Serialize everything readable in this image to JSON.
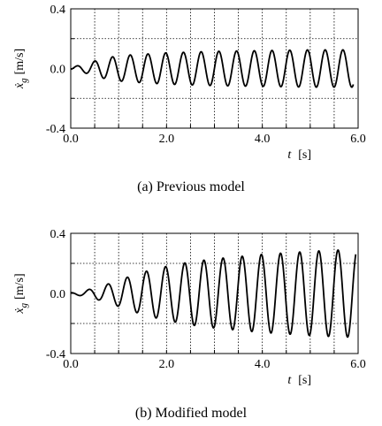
{
  "chart_data": [
    {
      "type": "line",
      "caption": "(a) Previous model",
      "xlabel": "t",
      "xlabel_unit": "[s]",
      "ylabel": "ẋ",
      "ylabel_sub": "g",
      "ylabel_unit": "[m/s]",
      "xlim": [
        0,
        6
      ],
      "ylim": [
        -0.4,
        0.4
      ],
      "xticks": [
        0,
        0.5,
        1,
        1.5,
        2,
        2.5,
        3,
        3.5,
        4,
        4.5,
        5,
        5.5,
        6
      ],
      "xticklabels": [
        {
          "x": 0,
          "label": "0.0"
        },
        {
          "x": 2,
          "label": "2.0"
        },
        {
          "x": 4,
          "label": "4.0"
        },
        {
          "x": 6,
          "label": "6.0"
        }
      ],
      "yticklabels": [
        {
          "y": 0.4,
          "label": "0.4"
        },
        {
          "y": 0,
          "label": "0.0"
        },
        {
          "y": -0.4,
          "label": "-0.4"
        }
      ],
      "hgrid": [
        0.2,
        -0.2
      ],
      "grid": "dotted",
      "series": [
        {
          "color": "#000000",
          "envelope": {
            "t": [
              0,
              0.3,
              0.6,
              0.9,
              1.2,
              2,
              3,
              4,
              5,
              5.9
            ],
            "amp": [
              0.008,
              0.03,
              0.06,
              0.08,
              0.09,
              0.105,
              0.115,
              0.12,
              0.125,
              0.125
            ]
          },
          "period": 0.37,
          "zero_crossing": 0.78,
          "end": 5.9
        }
      ]
    },
    {
      "type": "line",
      "caption": "(b) Modified model",
      "xlabel": "t",
      "xlabel_unit": "[s]",
      "ylabel": "ẋ",
      "ylabel_sub": "g",
      "ylabel_unit": "[m/s]",
      "xlim": [
        0,
        6
      ],
      "ylim": [
        -0.4,
        0.4
      ],
      "xticks": [
        0,
        0.5,
        1,
        1.5,
        2,
        2.5,
        3,
        3.5,
        4,
        4.5,
        5,
        5.5,
        6
      ],
      "xticklabels": [
        {
          "x": 0,
          "label": "0.0"
        },
        {
          "x": 2,
          "label": "2.0"
        },
        {
          "x": 4,
          "label": "4.0"
        },
        {
          "x": 6,
          "label": "6.0"
        }
      ],
      "yticklabels": [
        {
          "y": 0.4,
          "label": "0.4"
        },
        {
          "y": 0,
          "label": "0.0"
        },
        {
          "y": -0.4,
          "label": "-0.4"
        }
      ],
      "hgrid": [
        0.2,
        -0.2
      ],
      "grid": "dotted",
      "series": [
        {
          "color": "#000000",
          "envelope": {
            "t": [
              0,
              0.3,
              0.6,
              0.9,
              1.2,
              1.6,
              2,
              2.5,
              3,
              3.5,
              4,
              4.5,
              5,
              5.5,
              5.95
            ],
            "amp": [
              0.005,
              0.02,
              0.045,
              0.075,
              0.11,
              0.15,
              0.18,
              0.21,
              0.23,
              0.245,
              0.26,
              0.27,
              0.28,
              0.288,
              0.292
            ]
          },
          "period": 0.4,
          "zero_crossing": 0.68,
          "end": 5.95
        }
      ]
    }
  ]
}
